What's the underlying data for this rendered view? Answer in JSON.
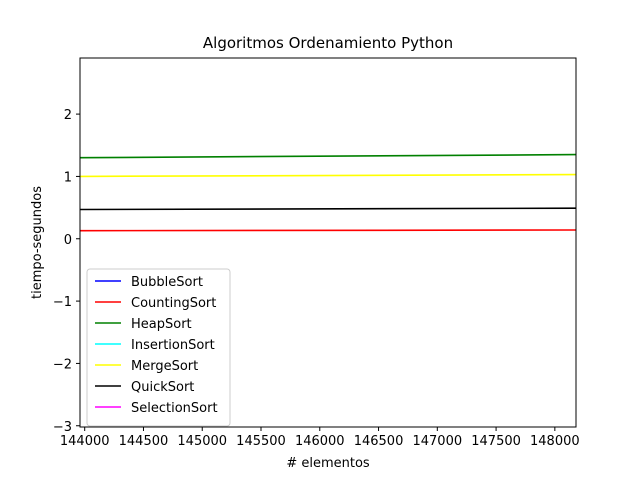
{
  "chart_data": {
    "type": "line",
    "title": "Algoritmos Ordenamiento Python",
    "xlabel": "# elementos",
    "ylabel": "tiempo-segundos",
    "xlim": [
      143960,
      148180
    ],
    "ylim": [
      -3.02,
      2.9
    ],
    "xticks": [
      {
        "value": 144000,
        "label": "144000"
      },
      {
        "value": 144500,
        "label": "144500"
      },
      {
        "value": 145000,
        "label": "145000"
      },
      {
        "value": 145500,
        "label": "145500"
      },
      {
        "value": 146000,
        "label": "146000"
      },
      {
        "value": 146500,
        "label": "146500"
      },
      {
        "value": 147000,
        "label": "147000"
      },
      {
        "value": 147500,
        "label": "147500"
      },
      {
        "value": 148000,
        "label": "148000"
      }
    ],
    "yticks": [
      {
        "value": -3,
        "label": "−3"
      },
      {
        "value": -2,
        "label": "−2"
      },
      {
        "value": -1,
        "label": "−1"
      },
      {
        "value": 0,
        "label": "0"
      },
      {
        "value": 1,
        "label": "1"
      },
      {
        "value": 2,
        "label": "2"
      }
    ],
    "grid": false,
    "legend_position": "lower-left",
    "series": [
      {
        "name": "BubbleSort",
        "color": "#0000ff",
        "x": [],
        "y": []
      },
      {
        "name": "CountingSort",
        "color": "#ff0000",
        "x": [
          143960,
          148180
        ],
        "y": [
          0.13,
          0.14
        ]
      },
      {
        "name": "HeapSort",
        "color": "#008000",
        "x": [
          143960,
          148180
        ],
        "y": [
          1.3,
          1.35
        ]
      },
      {
        "name": "InsertionSort",
        "color": "#00ffff",
        "x": [],
        "y": []
      },
      {
        "name": "MergeSort",
        "color": "#ffff00",
        "x": [
          143960,
          148180
        ],
        "y": [
          1.0,
          1.03
        ]
      },
      {
        "name": "QuickSort",
        "color": "#000000",
        "x": [
          143960,
          148180
        ],
        "y": [
          0.47,
          0.49
        ]
      },
      {
        "name": "SelectionSort",
        "color": "#ff00ff",
        "x": [],
        "y": []
      }
    ]
  }
}
